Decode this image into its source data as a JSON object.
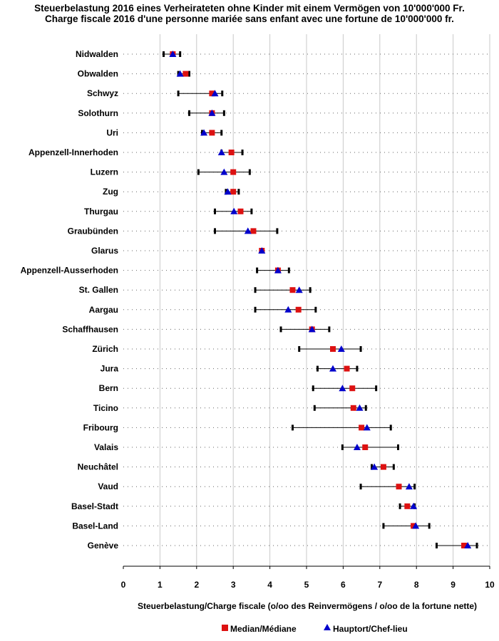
{
  "title_line1": "Steuerbelastung 2016 eines Verheirateten ohne Kinder mit einem Vermögen von 10'000'000 Fr.",
  "title_line2": "Charge fiscale 2016 d'une personne mariée sans enfant avec une fortune de 10'000'000 fr.",
  "colors": {
    "median": "#dd1111",
    "capital": "#0000cc",
    "range": "#000000",
    "grid": "#c8c8c8",
    "dotted": "#666666"
  },
  "chart_data": {
    "type": "range-dot",
    "xlabel": "Steuerbelastung/Charge fiscale (o/oo des Reinvermögens / o/oo de la fortune nette)",
    "xlim": [
      0,
      10
    ],
    "xticks": [
      "0",
      "1",
      "2",
      "3",
      "4",
      "5",
      "6",
      "7",
      "8",
      "9",
      "10"
    ],
    "legend": {
      "median": "Median/Médiane",
      "capital": "Hauptort/Chef-lieu",
      "position": "bottom"
    },
    "rows": [
      {
        "canton": "Nidwalden",
        "min": 1.1,
        "max": 1.55,
        "median": 1.35,
        "capital": 1.35
      },
      {
        "canton": "Obwalden",
        "min": 1.5,
        "max": 1.8,
        "median": 1.7,
        "capital": 1.55
      },
      {
        "canton": "Schwyz",
        "min": 1.5,
        "max": 2.7,
        "median": 2.42,
        "capital": 2.5
      },
      {
        "canton": "Solothurn",
        "min": 1.8,
        "max": 2.75,
        "median": 2.42,
        "capital": 2.42
      },
      {
        "canton": "Uri",
        "min": 2.15,
        "max": 2.68,
        "median": 2.42,
        "capital": 2.2
      },
      {
        "canton": "Appenzell-Innerhoden",
        "min": 2.68,
        "max": 3.25,
        "median": 2.95,
        "capital": 2.68
      },
      {
        "canton": "Luzern",
        "min": 2.05,
        "max": 3.45,
        "median": 3.0,
        "capital": 2.75
      },
      {
        "canton": "Zug",
        "min": 2.8,
        "max": 3.15,
        "median": 3.0,
        "capital": 2.85
      },
      {
        "canton": "Thurgau",
        "min": 2.5,
        "max": 3.5,
        "median": 3.2,
        "capital": 3.02
      },
      {
        "canton": "Graubünden",
        "min": 2.5,
        "max": 4.2,
        "median": 3.55,
        "capital": 3.4
      },
      {
        "canton": "Glarus",
        "min": 3.75,
        "max": 3.8,
        "median": 3.78,
        "capital": 3.78
      },
      {
        "canton": "Appenzell-Ausserhoden",
        "min": 3.65,
        "max": 4.52,
        "median": 4.22,
        "capital": 4.22
      },
      {
        "canton": "St. Gallen",
        "min": 3.6,
        "max": 5.1,
        "median": 4.62,
        "capital": 4.8
      },
      {
        "canton": "Aargau",
        "min": 3.6,
        "max": 5.25,
        "median": 4.78,
        "capital": 4.5
      },
      {
        "canton": "Schaffhausen",
        "min": 4.3,
        "max": 5.62,
        "median": 5.15,
        "capital": 5.15
      },
      {
        "canton": "Zürich",
        "min": 4.8,
        "max": 6.48,
        "median": 5.72,
        "capital": 5.95
      },
      {
        "canton": "Jura",
        "min": 5.3,
        "max": 6.38,
        "median": 6.1,
        "capital": 5.72
      },
      {
        "canton": "Bern",
        "min": 5.18,
        "max": 6.9,
        "median": 6.25,
        "capital": 5.98
      },
      {
        "canton": "Ticino",
        "min": 5.22,
        "max": 6.62,
        "median": 6.28,
        "capital": 6.45
      },
      {
        "canton": "Fribourg",
        "min": 4.62,
        "max": 7.3,
        "median": 6.5,
        "capital": 6.65
      },
      {
        "canton": "Valais",
        "min": 5.98,
        "max": 7.5,
        "median": 6.6,
        "capital": 6.38
      },
      {
        "canton": "Neuchâtel",
        "min": 6.78,
        "max": 7.38,
        "median": 7.1,
        "capital": 6.85
      },
      {
        "canton": "Vaud",
        "min": 6.48,
        "max": 7.95,
        "median": 7.52,
        "capital": 7.8
      },
      {
        "canton": "Basel-Stadt",
        "min": 7.55,
        "max": 7.95,
        "median": 7.75,
        "capital": 7.92
      },
      {
        "canton": "Basel-Land",
        "min": 7.1,
        "max": 8.35,
        "median": 7.92,
        "capital": 7.98
      },
      {
        "canton": "Genève",
        "min": 8.55,
        "max": 9.65,
        "median": 9.3,
        "capital": 9.4
      }
    ]
  }
}
